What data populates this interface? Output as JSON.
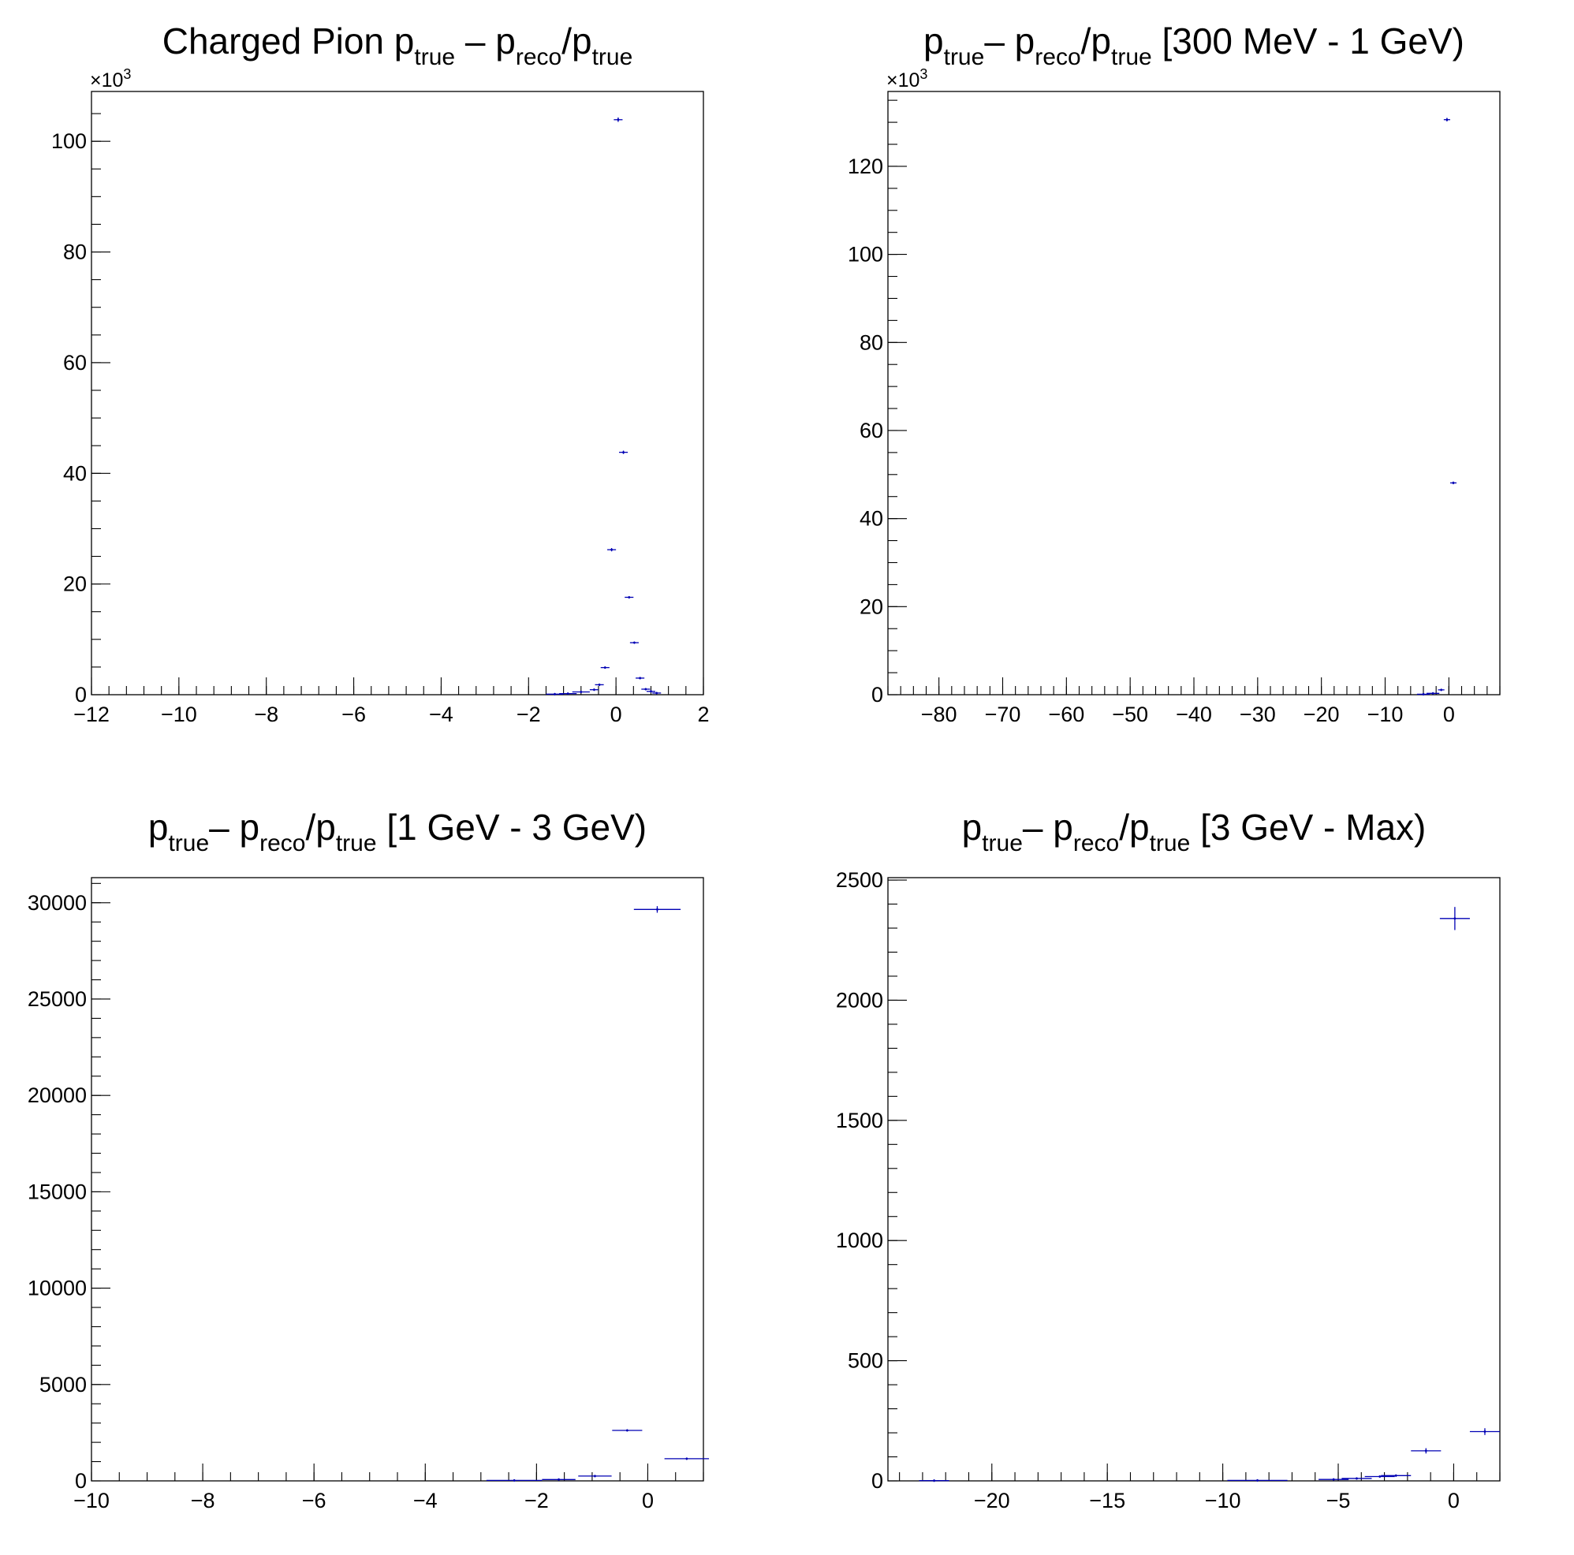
{
  "colors": {
    "series": "#0000b4",
    "axes": "#000000",
    "background": "#ffffff"
  },
  "chart_data": [
    {
      "type": "scatter",
      "title": {
        "text": "Charged Pion p",
        "segments": [
          {
            "t": "Charged Pion p",
            "sub": false
          },
          {
            "t": "true",
            "sub": true
          },
          {
            "t": " – p",
            "sub": false
          },
          {
            "t": "reco",
            "sub": true
          },
          {
            "t": "/p",
            "sub": false
          },
          {
            "t": "true",
            "sub": true
          }
        ]
      },
      "xlabel": "",
      "ylabel": "",
      "xlim": [
        -12,
        2
      ],
      "ylim": [
        0,
        109
      ],
      "y_multiplier": "×10",
      "y_multiplier_exp": "3",
      "grid": false,
      "legend": "none",
      "x_ticks": [
        "−12",
        "−10",
        "−8",
        "−6",
        "−4",
        "−2",
        "0",
        "2"
      ],
      "x_tick_values": [
        -12,
        -10,
        -8,
        -6,
        -4,
        -2,
        0,
        2
      ],
      "x_minor_step": 0.4,
      "y_ticks": [
        "0",
        "20",
        "40",
        "60",
        "80",
        "100"
      ],
      "y_tick_values": [
        0,
        20,
        40,
        60,
        80,
        100
      ],
      "y_minor_step": 5,
      "points": [
        {
          "x": 0.05,
          "y": 103.9,
          "xerr": 0.1,
          "yerr": 0.4
        },
        {
          "x": 0.17,
          "y": 43.8,
          "xerr": 0.1,
          "yerr": 0.3
        },
        {
          "x": -0.1,
          "y": 26.2,
          "xerr": 0.1,
          "yerr": 0.3
        },
        {
          "x": 0.3,
          "y": 17.6,
          "xerr": 0.1,
          "yerr": 0.2
        },
        {
          "x": 0.42,
          "y": 9.4,
          "xerr": 0.1,
          "yerr": 0.2
        },
        {
          "x": -0.25,
          "y": 4.9,
          "xerr": 0.1,
          "yerr": 0.2
        },
        {
          "x": 0.55,
          "y": 3.0,
          "xerr": 0.1,
          "yerr": 0.2
        },
        {
          "x": -0.38,
          "y": 1.8,
          "xerr": 0.1,
          "yerr": 0.2
        },
        {
          "x": 0.68,
          "y": 1.0,
          "xerr": 0.1,
          "yerr": 0.2
        },
        {
          "x": -0.5,
          "y": 0.9,
          "xerr": 0.1,
          "yerr": 0.2
        },
        {
          "x": 0.8,
          "y": 0.6,
          "xerr": 0.1,
          "yerr": 0.2
        },
        {
          "x": 0.93,
          "y": 0.3,
          "xerr": 0.1,
          "yerr": 0.2
        },
        {
          "x": -0.8,
          "y": 0.5,
          "xerr": 0.2,
          "yerr": 0.2
        },
        {
          "x": -1.1,
          "y": 0.2,
          "xerr": 0.2,
          "yerr": 0.1
        },
        {
          "x": -1.4,
          "y": 0.1,
          "xerr": 0.2,
          "yerr": 0.1
        }
      ]
    },
    {
      "type": "scatter",
      "title": {
        "text": "p",
        "segments": [
          {
            "t": "p",
            "sub": false
          },
          {
            "t": "true",
            "sub": true
          },
          {
            "t": "– p",
            "sub": false
          },
          {
            "t": "reco",
            "sub": true
          },
          {
            "t": "/p",
            "sub": false
          },
          {
            "t": "true",
            "sub": true
          },
          {
            "t": " [300 MeV - 1 GeV)",
            "sub": false
          }
        ]
      },
      "xlabel": "",
      "ylabel": "",
      "xlim": [
        -88,
        8
      ],
      "ylim": [
        0,
        137
      ],
      "y_multiplier": "×10",
      "y_multiplier_exp": "3",
      "grid": false,
      "legend": "none",
      "x_ticks": [
        "−80",
        "−70",
        "−60",
        "−50",
        "−40",
        "−30",
        "−20",
        "−10",
        "0"
      ],
      "x_tick_values": [
        -80,
        -70,
        -60,
        -50,
        -40,
        -30,
        -20,
        -10,
        0
      ],
      "x_minor_step": 2,
      "y_ticks": [
        "0",
        "20",
        "40",
        "60",
        "80",
        "100",
        "120"
      ],
      "y_tick_values": [
        0,
        20,
        40,
        60,
        80,
        100,
        120
      ],
      "y_minor_step": 5,
      "points": [
        {
          "x": -0.3,
          "y": 130.6,
          "xerr": 0.5,
          "yerr": 0.4
        },
        {
          "x": 0.7,
          "y": 48.1,
          "xerr": 0.5,
          "yerr": 0.3
        },
        {
          "x": -1.2,
          "y": 1.1,
          "xerr": 0.5,
          "yerr": 0.2
        },
        {
          "x": -2.5,
          "y": 0.3,
          "xerr": 1.0,
          "yerr": 0.1
        },
        {
          "x": -4.0,
          "y": 0.1,
          "xerr": 1.0,
          "yerr": 0.1
        }
      ]
    },
    {
      "type": "scatter",
      "title": {
        "text": "p",
        "segments": [
          {
            "t": "p",
            "sub": false
          },
          {
            "t": "true",
            "sub": true
          },
          {
            "t": "– p",
            "sub": false
          },
          {
            "t": "reco",
            "sub": true
          },
          {
            "t": "/p",
            "sub": false
          },
          {
            "t": "true",
            "sub": true
          },
          {
            "t": " [1 GeV - 3 GeV)",
            "sub": false
          }
        ]
      },
      "xlabel": "",
      "ylabel": "",
      "xlim": [
        -10,
        1
      ],
      "ylim": [
        0,
        31300
      ],
      "y_multiplier": "",
      "y_multiplier_exp": "",
      "grid": false,
      "legend": "none",
      "x_ticks": [
        "−10",
        "−8",
        "−6",
        "−4",
        "−2",
        "0"
      ],
      "x_tick_values": [
        -10,
        -8,
        -6,
        -4,
        -2,
        0
      ],
      "x_minor_step": 0.5,
      "y_ticks": [
        "0",
        "5000",
        "10000",
        "15000",
        "20000",
        "25000",
        "30000"
      ],
      "y_tick_values": [
        0,
        5000,
        10000,
        15000,
        20000,
        25000,
        30000
      ],
      "y_minor_step": 1000,
      "points": [
        {
          "x": 0.17,
          "y": 29650,
          "xerr": 0.42,
          "yerr": 170
        },
        {
          "x": -0.37,
          "y": 2620,
          "xerr": 0.27,
          "yerr": 50
        },
        {
          "x": 0.7,
          "y": 1150,
          "xerr": 0.4,
          "yerr": 35
        },
        {
          "x": -0.95,
          "y": 250,
          "xerr": 0.3,
          "yerr": 20
        },
        {
          "x": -1.6,
          "y": 70,
          "xerr": 0.3,
          "yerr": 10
        },
        {
          "x": -2.4,
          "y": 25,
          "xerr": 0.5,
          "yerr": 5
        }
      ]
    },
    {
      "type": "scatter",
      "title": {
        "text": "p",
        "segments": [
          {
            "t": "p",
            "sub": false
          },
          {
            "t": "true",
            "sub": true
          },
          {
            "t": "– p",
            "sub": false
          },
          {
            "t": "reco",
            "sub": true
          },
          {
            "t": "/p",
            "sub": false
          },
          {
            "t": "true",
            "sub": true
          },
          {
            "t": " [3 GeV - Max)",
            "sub": false
          }
        ]
      },
      "xlabel": "",
      "ylabel": "",
      "xlim": [
        -24.5,
        2
      ],
      "ylim": [
        0,
        2510
      ],
      "y_multiplier": "",
      "y_multiplier_exp": "",
      "grid": false,
      "legend": "none",
      "x_ticks": [
        "−20",
        "−15",
        "−10",
        "−5",
        "0"
      ],
      "x_tick_values": [
        -20,
        -15,
        -10,
        -5,
        0
      ],
      "x_minor_step": 1,
      "y_ticks": [
        "0",
        "500",
        "1000",
        "1500",
        "2000",
        "2500"
      ],
      "y_tick_values": [
        0,
        500,
        1000,
        1500,
        2000,
        2500
      ],
      "y_minor_step": 100,
      "points": [
        {
          "x": 0.05,
          "y": 2340,
          "xerr": 0.65,
          "yerr": 48
        },
        {
          "x": 1.35,
          "y": 205,
          "xerr": 0.65,
          "yerr": 14
        },
        {
          "x": -1.2,
          "y": 125,
          "xerr": 0.65,
          "yerr": 11
        },
        {
          "x": -2.5,
          "y": 22,
          "xerr": 0.65,
          "yerr": 5
        },
        {
          "x": -3.2,
          "y": 18,
          "xerr": 0.65,
          "yerr": 4
        },
        {
          "x": -4.2,
          "y": 10,
          "xerr": 0.65,
          "yerr": 3
        },
        {
          "x": -5.2,
          "y": 6,
          "xerr": 0.65,
          "yerr": 2
        },
        {
          "x": -8.5,
          "y": 2,
          "xerr": 1.3,
          "yerr": 1
        },
        {
          "x": -22.5,
          "y": 1,
          "xerr": 0.65,
          "yerr": 1
        }
      ]
    }
  ]
}
